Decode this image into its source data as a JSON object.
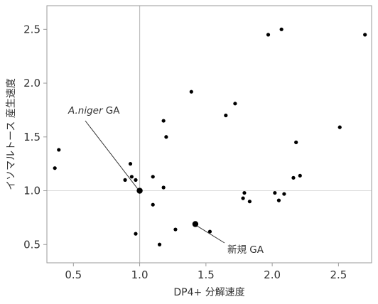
{
  "chart_data": {
    "type": "scatter",
    "xlabel": "DP4+ 分解速度",
    "ylabel": "イソマルトース 産生速度",
    "xlim": [
      0.3,
      2.75
    ],
    "ylim": [
      0.33,
      2.72
    ],
    "x_ticks": [
      "0.5",
      "1.0",
      "1.5",
      "2.0",
      "2.5"
    ],
    "y_ticks": [
      "0.5",
      "1.0",
      "1.5",
      "2.0",
      "2.5"
    ],
    "reference_lines": {
      "x": 1.0,
      "y": 1.0
    },
    "grid": false,
    "legend": "none",
    "points": [
      {
        "x": 0.36,
        "y": 1.21
      },
      {
        "x": 0.39,
        "y": 1.38
      },
      {
        "x": 0.89,
        "y": 1.1
      },
      {
        "x": 0.93,
        "y": 1.25
      },
      {
        "x": 0.94,
        "y": 1.13
      },
      {
        "x": 0.97,
        "y": 1.1
      },
      {
        "x": 0.97,
        "y": 0.6
      },
      {
        "x": 1.1,
        "y": 1.13
      },
      {
        "x": 1.1,
        "y": 0.87
      },
      {
        "x": 1.15,
        "y": 0.5
      },
      {
        "x": 1.18,
        "y": 1.65
      },
      {
        "x": 1.18,
        "y": 1.03
      },
      {
        "x": 1.2,
        "y": 1.5
      },
      {
        "x": 1.27,
        "y": 0.64
      },
      {
        "x": 1.39,
        "y": 1.92
      },
      {
        "x": 1.53,
        "y": 0.62
      },
      {
        "x": 1.65,
        "y": 1.7
      },
      {
        "x": 1.72,
        "y": 1.81
      },
      {
        "x": 1.78,
        "y": 0.93
      },
      {
        "x": 1.79,
        "y": 0.98
      },
      {
        "x": 1.83,
        "y": 0.9
      },
      {
        "x": 1.97,
        "y": 2.45
      },
      {
        "x": 2.02,
        "y": 0.98
      },
      {
        "x": 2.05,
        "y": 0.91
      },
      {
        "x": 2.07,
        "y": 2.5
      },
      {
        "x": 2.09,
        "y": 0.97
      },
      {
        "x": 2.16,
        "y": 1.12
      },
      {
        "x": 2.18,
        "y": 1.45
      },
      {
        "x": 2.21,
        "y": 1.14
      },
      {
        "x": 2.51,
        "y": 1.59
      },
      {
        "x": 2.7,
        "y": 2.45
      }
    ],
    "highlighted_points": [
      {
        "x": 1.0,
        "y": 1.0,
        "label_italic": "A.niger",
        "label_rest": " GA"
      },
      {
        "x": 1.42,
        "y": 0.69,
        "label": "新規 GA"
      }
    ]
  }
}
